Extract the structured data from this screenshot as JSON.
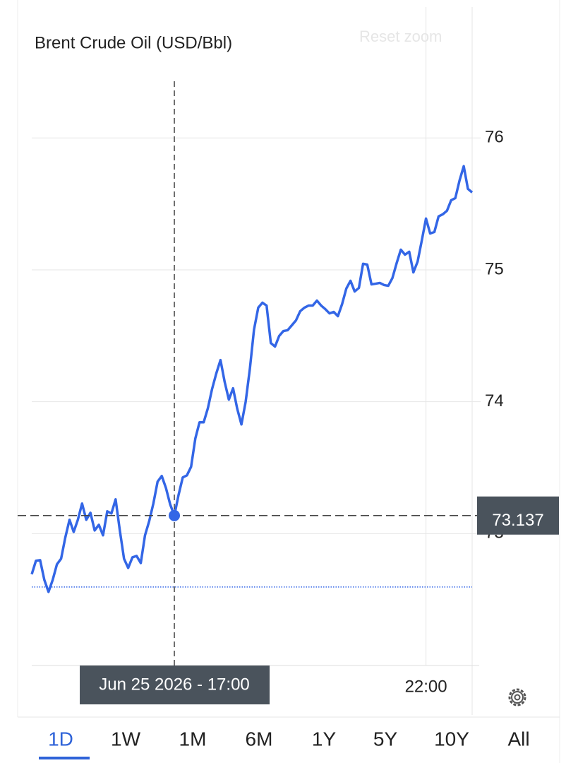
{
  "chart_data": {
    "type": "line",
    "title": "Brent Crude Oil (USD/Bbl)",
    "x": [
      14.167,
      14.25,
      14.333,
      14.417,
      14.5,
      14.583,
      14.667,
      14.75,
      14.833,
      14.917,
      15,
      15.083,
      15.167,
      15.25,
      15.333,
      15.417,
      15.5,
      15.583,
      15.667,
      15.75,
      15.833,
      15.917,
      16,
      16.083,
      16.167,
      16.25,
      16.333,
      16.417,
      16.5,
      16.583,
      16.667,
      16.75,
      16.833,
      16.917,
      17,
      17.083,
      17.167,
      17.25,
      17.333,
      17.417,
      17.5,
      17.583,
      17.667,
      17.75,
      17.833,
      17.917,
      18,
      18.083,
      18.167,
      18.25,
      18.333,
      18.417,
      18.5,
      18.583,
      18.667,
      18.75,
      18.833,
      18.917,
      19,
      19.083,
      19.167,
      19.25,
      19.333,
      19.417,
      19.5,
      19.583,
      19.667,
      19.75,
      19.833,
      19.917,
      20,
      20.083,
      20.167,
      20.25,
      20.333,
      20.417,
      20.5,
      20.583,
      20.667,
      20.75,
      20.833,
      20.917,
      21,
      21.083,
      21.167,
      21.25,
      21.333,
      21.417,
      21.5,
      21.583,
      21.667,
      21.75,
      21.833,
      21.917,
      22,
      22.083,
      22.167,
      22.25,
      22.333,
      22.417,
      22.5,
      22.583,
      22.667,
      22.75,
      22.833,
      22.917
    ],
    "series": [
      {
        "color": "#3366e6",
        "values": [
          72.692,
          72.794,
          72.799,
          72.649,
          72.558,
          72.649,
          72.767,
          72.81,
          72.97,
          73.105,
          73.013,
          73.105,
          73.228,
          73.105,
          73.158,
          73.024,
          73.067,
          72.987,
          73.169,
          73.153,
          73.26,
          73.024,
          72.81,
          72.74,
          72.82,
          72.831,
          72.777,
          72.987,
          73.094,
          73.228,
          73.394,
          73.437,
          73.346,
          73.222,
          73.137,
          73.292,
          73.426,
          73.442,
          73.507,
          73.721,
          73.844,
          73.844,
          73.952,
          74.097,
          74.214,
          74.316,
          74.15,
          74.016,
          74.102,
          73.946,
          73.828,
          74.0,
          74.247,
          74.547,
          74.713,
          74.751,
          74.729,
          74.445,
          74.418,
          74.499,
          74.536,
          74.542,
          74.579,
          74.617,
          74.686,
          74.713,
          74.729,
          74.729,
          74.767,
          74.729,
          74.702,
          74.67,
          74.681,
          74.649,
          74.74,
          74.858,
          74.917,
          74.836,
          74.863,
          75.046,
          75.04,
          74.89,
          74.895,
          74.901,
          74.885,
          74.879,
          74.938,
          75.051,
          75.153,
          75.115,
          75.137,
          74.981,
          75.062,
          75.223,
          75.389,
          75.276,
          75.287,
          75.405,
          75.421,
          75.448,
          75.528,
          75.544,
          75.678,
          75.786,
          75.614,
          75.587
        ]
      }
    ],
    "xlim": [
      14.167,
      22.917
    ],
    "xticks": [
      {
        "value": 22,
        "label": "22:00"
      }
    ],
    "ylim": [
      72,
      76.43
    ],
    "yticks": [
      73,
      74,
      75,
      76
    ],
    "grid": true,
    "reference_line": 72.595,
    "crosshair": {
      "x_label": "Jun 25 2026 - 17:00",
      "value": 73.137
    }
  },
  "reset_zoom": "Reset zoom",
  "range_buttons": [
    "1D",
    "1W",
    "1M",
    "6M",
    "1Y",
    "5Y",
    "10Y",
    "All"
  ],
  "selected_range": 0
}
